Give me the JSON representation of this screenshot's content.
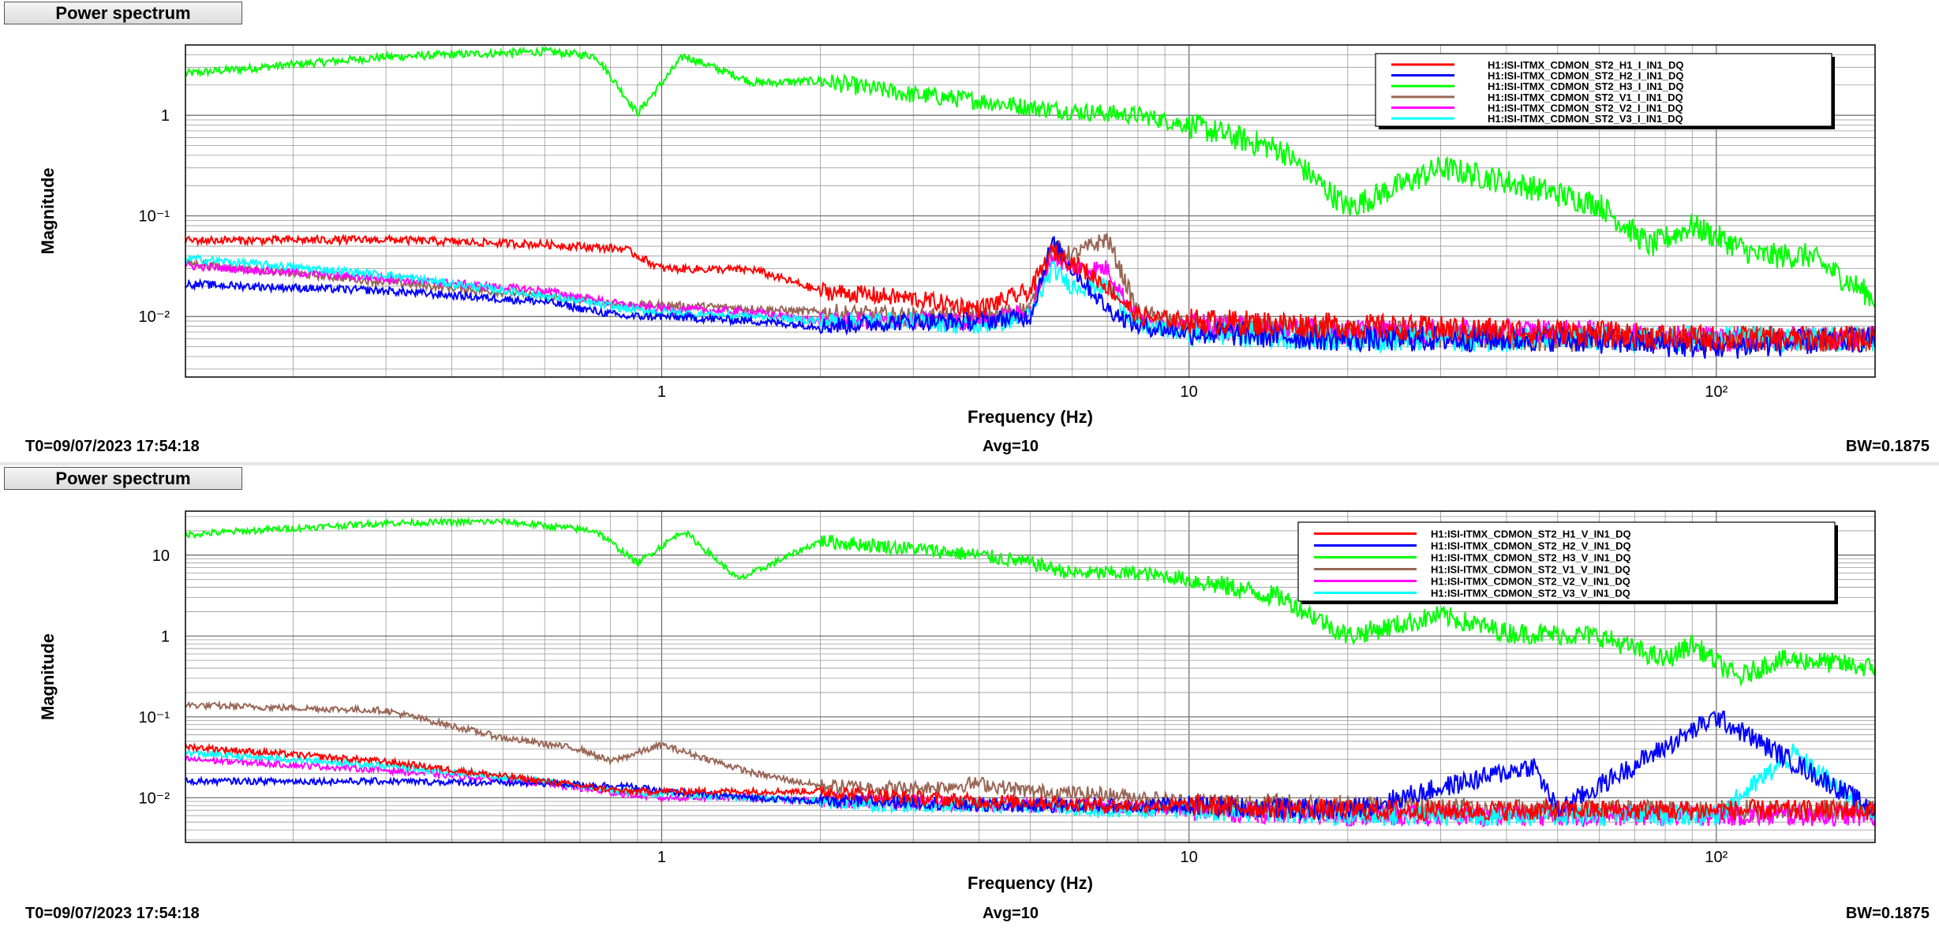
{
  "panels": [
    {
      "title": "Power spectrum",
      "footer": {
        "t0": "T0=09/07/2023 17:54:18",
        "avg": "Avg=10",
        "bw": "BW=0.1875"
      }
    },
    {
      "title": "Power spectrum",
      "footer": {
        "t0": "T0=09/07/2023 17:54:18",
        "avg": "Avg=10",
        "bw": "BW=0.1875"
      }
    }
  ],
  "chart_data": [
    {
      "type": "line",
      "xlabel": "Frequency (Hz)",
      "ylabel": "Magnitude",
      "xscale": "log",
      "yscale": "log",
      "xlim": [
        0.125,
        200
      ],
      "ylim": [
        0.0025,
        5
      ],
      "xtick_labels": [
        "1",
        "10",
        "10²"
      ],
      "ytick_labels": [
        "10⁻²",
        "10⁻¹",
        "1"
      ],
      "grid": true,
      "legend_position": "top-right",
      "series": [
        {
          "name": "H1:ISI-ITMX_CDMON_ST2_H1_I_IN1_DQ",
          "color": "#ff0000",
          "x": [
            0.125,
            0.3,
            0.6,
            0.85,
            1.0,
            1.5,
            2.0,
            3.0,
            4.0,
            5.0,
            5.5,
            6.0,
            7.0,
            8.0,
            10,
            20,
            50,
            100,
            200
          ],
          "y": [
            0.057,
            0.058,
            0.052,
            0.047,
            0.03,
            0.029,
            0.018,
            0.015,
            0.012,
            0.018,
            0.045,
            0.035,
            0.02,
            0.01,
            0.009,
            0.008,
            0.007,
            0.006,
            0.006
          ]
        },
        {
          "name": "H1:ISI-ITMX_CDMON_ST2_H2_I_IN1_DQ",
          "color": "#0000ff",
          "x": [
            0.125,
            0.3,
            0.6,
            0.85,
            1.0,
            1.5,
            2.0,
            3.0,
            4.0,
            5.0,
            5.5,
            6.0,
            7.0,
            8.0,
            10,
            20,
            50,
            100,
            200
          ],
          "y": [
            0.021,
            0.018,
            0.014,
            0.01,
            0.01,
            0.009,
            0.008,
            0.009,
            0.009,
            0.01,
            0.055,
            0.03,
            0.012,
            0.008,
            0.007,
            0.006,
            0.006,
            0.005,
            0.006
          ]
        },
        {
          "name": "H1:ISI-ITMX_CDMON_ST2_H3_I_IN1_DQ",
          "color": "#00ff00",
          "x": [
            0.125,
            0.3,
            0.6,
            0.75,
            0.9,
            1.1,
            1.5,
            2.0,
            3.0,
            4.0,
            5.0,
            6.0,
            8.0,
            10,
            15,
            20,
            30,
            40,
            60,
            75,
            90,
            120,
            150,
            200
          ],
          "y": [
            2.6,
            3.8,
            4.3,
            3.9,
            1.05,
            3.9,
            2.1,
            2.2,
            1.6,
            1.4,
            1.2,
            1.1,
            1.0,
            0.8,
            0.45,
            0.12,
            0.3,
            0.22,
            0.13,
            0.05,
            0.08,
            0.04,
            0.04,
            0.015
          ]
        },
        {
          "name": "H1:ISI-ITMX_CDMON_ST2_V1_I_IN1_DQ",
          "color": "#996655",
          "x": [
            0.125,
            0.3,
            0.6,
            0.85,
            1.0,
            1.5,
            2.0,
            3.0,
            4.0,
            5.0,
            5.5,
            6.0,
            7.0,
            8.0,
            10,
            20,
            50,
            100,
            200
          ],
          "y": [
            0.034,
            0.022,
            0.016,
            0.013,
            0.013,
            0.012,
            0.011,
            0.01,
            0.01,
            0.012,
            0.05,
            0.04,
            0.06,
            0.011,
            0.008,
            0.007,
            0.006,
            0.006,
            0.006
          ]
        },
        {
          "name": "H1:ISI-ITMX_CDMON_ST2_V2_I_IN1_DQ",
          "color": "#ff00ff",
          "x": [
            0.125,
            0.3,
            0.6,
            0.85,
            1.0,
            1.5,
            2.0,
            3.0,
            4.0,
            5.0,
            5.5,
            6.0,
            7.0,
            8.0,
            10,
            20,
            50,
            100,
            200
          ],
          "y": [
            0.032,
            0.024,
            0.018,
            0.013,
            0.012,
            0.011,
            0.009,
            0.009,
            0.009,
            0.011,
            0.04,
            0.03,
            0.03,
            0.009,
            0.008,
            0.007,
            0.007,
            0.006,
            0.006
          ]
        },
        {
          "name": "H1:ISI-ITMX_CDMON_ST2_V3_I_IN1_DQ",
          "color": "#00ffff",
          "x": [
            0.125,
            0.3,
            0.6,
            0.85,
            1.0,
            1.5,
            2.0,
            3.0,
            4.0,
            5.0,
            5.5,
            6.0,
            7.0,
            8.0,
            10,
            20,
            50,
            100,
            200
          ],
          "y": [
            0.038,
            0.026,
            0.016,
            0.012,
            0.011,
            0.01,
            0.009,
            0.009,
            0.008,
            0.01,
            0.03,
            0.02,
            0.02,
            0.008,
            0.007,
            0.006,
            0.006,
            0.006,
            0.006
          ]
        }
      ]
    },
    {
      "type": "line",
      "xlabel": "Frequency (Hz)",
      "ylabel": "Magnitude",
      "xscale": "log",
      "yscale": "log",
      "xlim": [
        0.125,
        200
      ],
      "ylim": [
        0.0028,
        35
      ],
      "xtick_labels": [
        "1",
        "10",
        "10²"
      ],
      "ytick_labels": [
        "10⁻²",
        "10⁻¹",
        "1",
        "10"
      ],
      "grid": true,
      "legend_position": "top-right",
      "series": [
        {
          "name": "H1:ISI-ITMX_CDMON_ST2_H1_V_IN1_DQ",
          "color": "#ff0000",
          "x": [
            0.125,
            0.3,
            0.6,
            0.85,
            1.0,
            1.5,
            2.0,
            3.0,
            4.0,
            5.0,
            7.0,
            10,
            20,
            50,
            100,
            200
          ],
          "y": [
            0.043,
            0.028,
            0.016,
            0.012,
            0.012,
            0.012,
            0.012,
            0.01,
            0.009,
            0.009,
            0.008,
            0.008,
            0.007,
            0.007,
            0.007,
            0.007
          ]
        },
        {
          "name": "H1:ISI-ITMX_CDMON_ST2_H2_V_IN1_DQ",
          "color": "#0000ff",
          "x": [
            0.125,
            0.3,
            0.6,
            0.85,
            1.0,
            1.5,
            2.0,
            3.0,
            4.0,
            5.0,
            7.0,
            10,
            20,
            45,
            50,
            100,
            200
          ],
          "y": [
            0.016,
            0.016,
            0.015,
            0.014,
            0.012,
            0.01,
            0.009,
            0.009,
            0.008,
            0.008,
            0.008,
            0.008,
            0.007,
            0.025,
            0.007,
            0.1,
            0.007
          ]
        },
        {
          "name": "H1:ISI-ITMX_CDMON_ST2_H3_V_IN1_DQ",
          "color": "#00ff00",
          "x": [
            0.125,
            0.3,
            0.5,
            0.75,
            0.9,
            1.1,
            1.4,
            2.0,
            3.0,
            4.0,
            5.0,
            6.0,
            8.0,
            10,
            15,
            20,
            30,
            40,
            60,
            80,
            90,
            110,
            130,
            150,
            200
          ],
          "y": [
            18,
            25,
            26,
            20,
            8,
            20,
            5,
            15,
            12,
            10,
            8,
            6,
            6,
            5,
            3,
            1.0,
            1.8,
            1.1,
            1.0,
            0.5,
            0.8,
            0.3,
            0.5,
            0.5,
            0.4
          ]
        },
        {
          "name": "H1:ISI-ITMX_CDMON_ST2_V1_V_IN1_DQ",
          "color": "#996655",
          "x": [
            0.125,
            0.3,
            0.5,
            0.7,
            0.8,
            1.0,
            1.5,
            2.0,
            3.0,
            4.0,
            5.0,
            7.0,
            10,
            20,
            50,
            100,
            200
          ],
          "y": [
            0.14,
            0.12,
            0.055,
            0.04,
            0.028,
            0.045,
            0.02,
            0.014,
            0.013,
            0.015,
            0.012,
            0.011,
            0.009,
            0.008,
            0.007,
            0.007,
            0.007
          ]
        },
        {
          "name": "H1:ISI-ITMX_CDMON_ST2_V2_V_IN1_DQ",
          "color": "#ff00ff",
          "x": [
            0.125,
            0.3,
            0.6,
            0.85,
            1.0,
            1.5,
            2.0,
            3.0,
            4.0,
            5.0,
            7.0,
            10,
            20,
            50,
            100,
            200
          ],
          "y": [
            0.03,
            0.022,
            0.015,
            0.011,
            0.01,
            0.01,
            0.009,
            0.009,
            0.008,
            0.008,
            0.008,
            0.007,
            0.006,
            0.006,
            0.006,
            0.006
          ]
        },
        {
          "name": "H1:ISI-ITMX_CDMON_ST2_V3_V_IN1_DQ",
          "color": "#00ffff",
          "x": [
            0.125,
            0.3,
            0.6,
            0.85,
            1.0,
            1.5,
            2.0,
            3.0,
            4.0,
            5.0,
            7.0,
            10,
            20,
            50,
            100,
            140,
            200
          ],
          "y": [
            0.036,
            0.025,
            0.016,
            0.012,
            0.011,
            0.01,
            0.009,
            0.008,
            0.008,
            0.008,
            0.007,
            0.007,
            0.006,
            0.006,
            0.006,
            0.035,
            0.006
          ]
        }
      ]
    }
  ]
}
